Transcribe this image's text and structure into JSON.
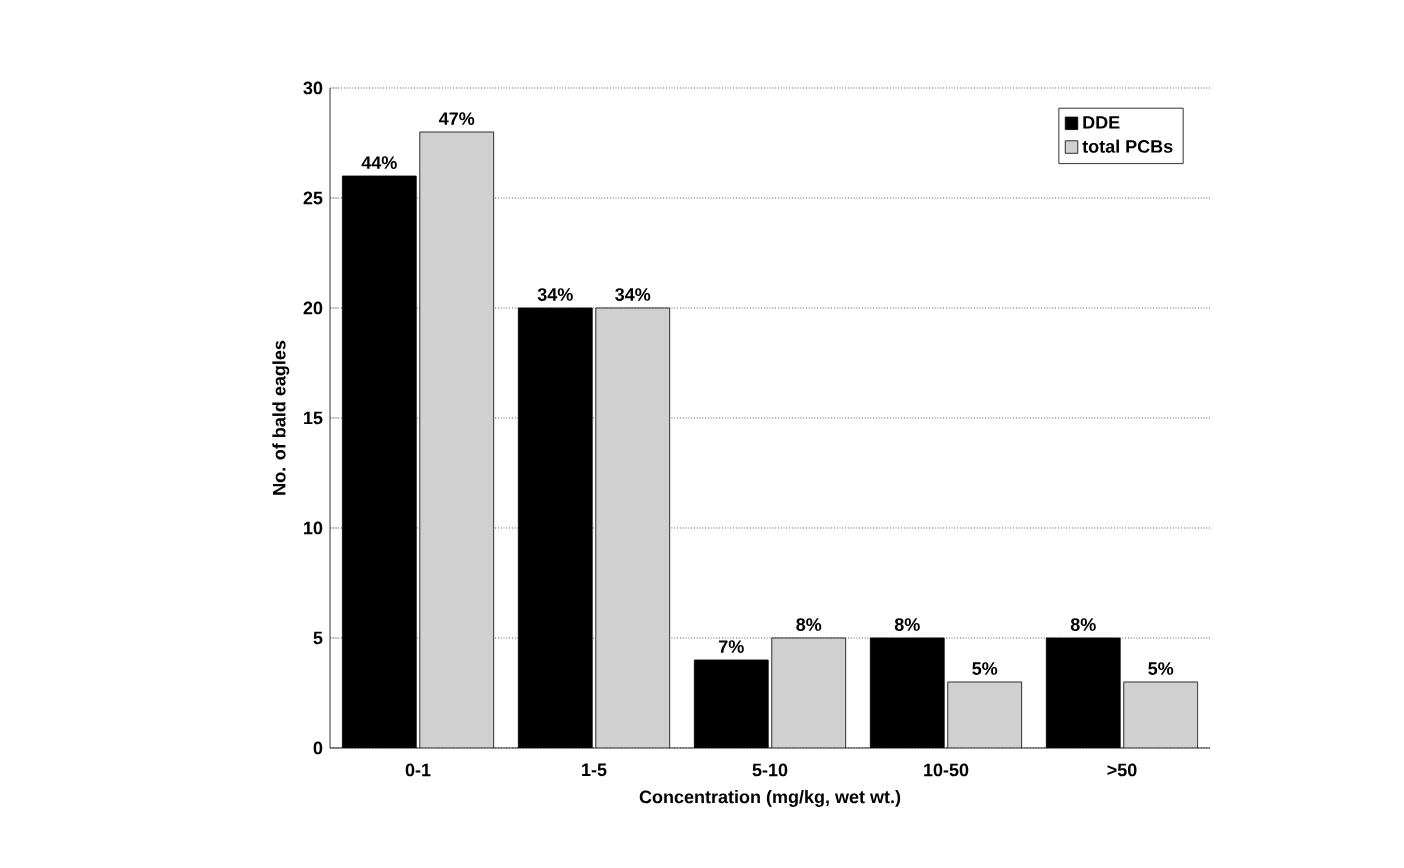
{
  "chart_data": {
    "type": "bar",
    "ylabel": "No. of bald eagles",
    "xlabel": "Concentration (mg/kg, wet wt.)",
    "categories": [
      "0-1",
      "1-5",
      "5-10",
      "10-50",
      ">50"
    ],
    "series": [
      {
        "name": "DDE",
        "color": "#000000",
        "values": [
          26,
          20,
          4,
          5,
          5
        ]
      },
      {
        "name": "total PCBs",
        "color": "#d0d0d0",
        "values": [
          28,
          20,
          5,
          3,
          3
        ]
      }
    ],
    "annotations": [
      {
        "text": "44%",
        "x": "0-1",
        "y": 26
      },
      {
        "text": "34%",
        "x": "1-5",
        "y": 20
      },
      {
        "text": "7%",
        "x": "5-10",
        "y": 4
      },
      {
        "text": "8%",
        "x": "10-50",
        "y": 5
      },
      {
        "text": "8%",
        "x": ">50",
        "y": 5
      },
      {
        "text": "47%",
        "x": "0-1",
        "y": 28
      },
      {
        "text": "34%",
        "x": "1-5",
        "y": 20
      },
      {
        "text": "8%",
        "x": "5-10",
        "y": 5
      },
      {
        "text": "5%",
        "x": "10-50",
        "y": 3
      },
      {
        "text": "5%",
        "x": ">50",
        "y": 3
      }
    ],
    "ylim": [
      0,
      30
    ],
    "yticks": [
      0,
      5,
      10,
      15,
      20,
      25,
      30
    ],
    "grid": "y",
    "legend": "top right"
  }
}
